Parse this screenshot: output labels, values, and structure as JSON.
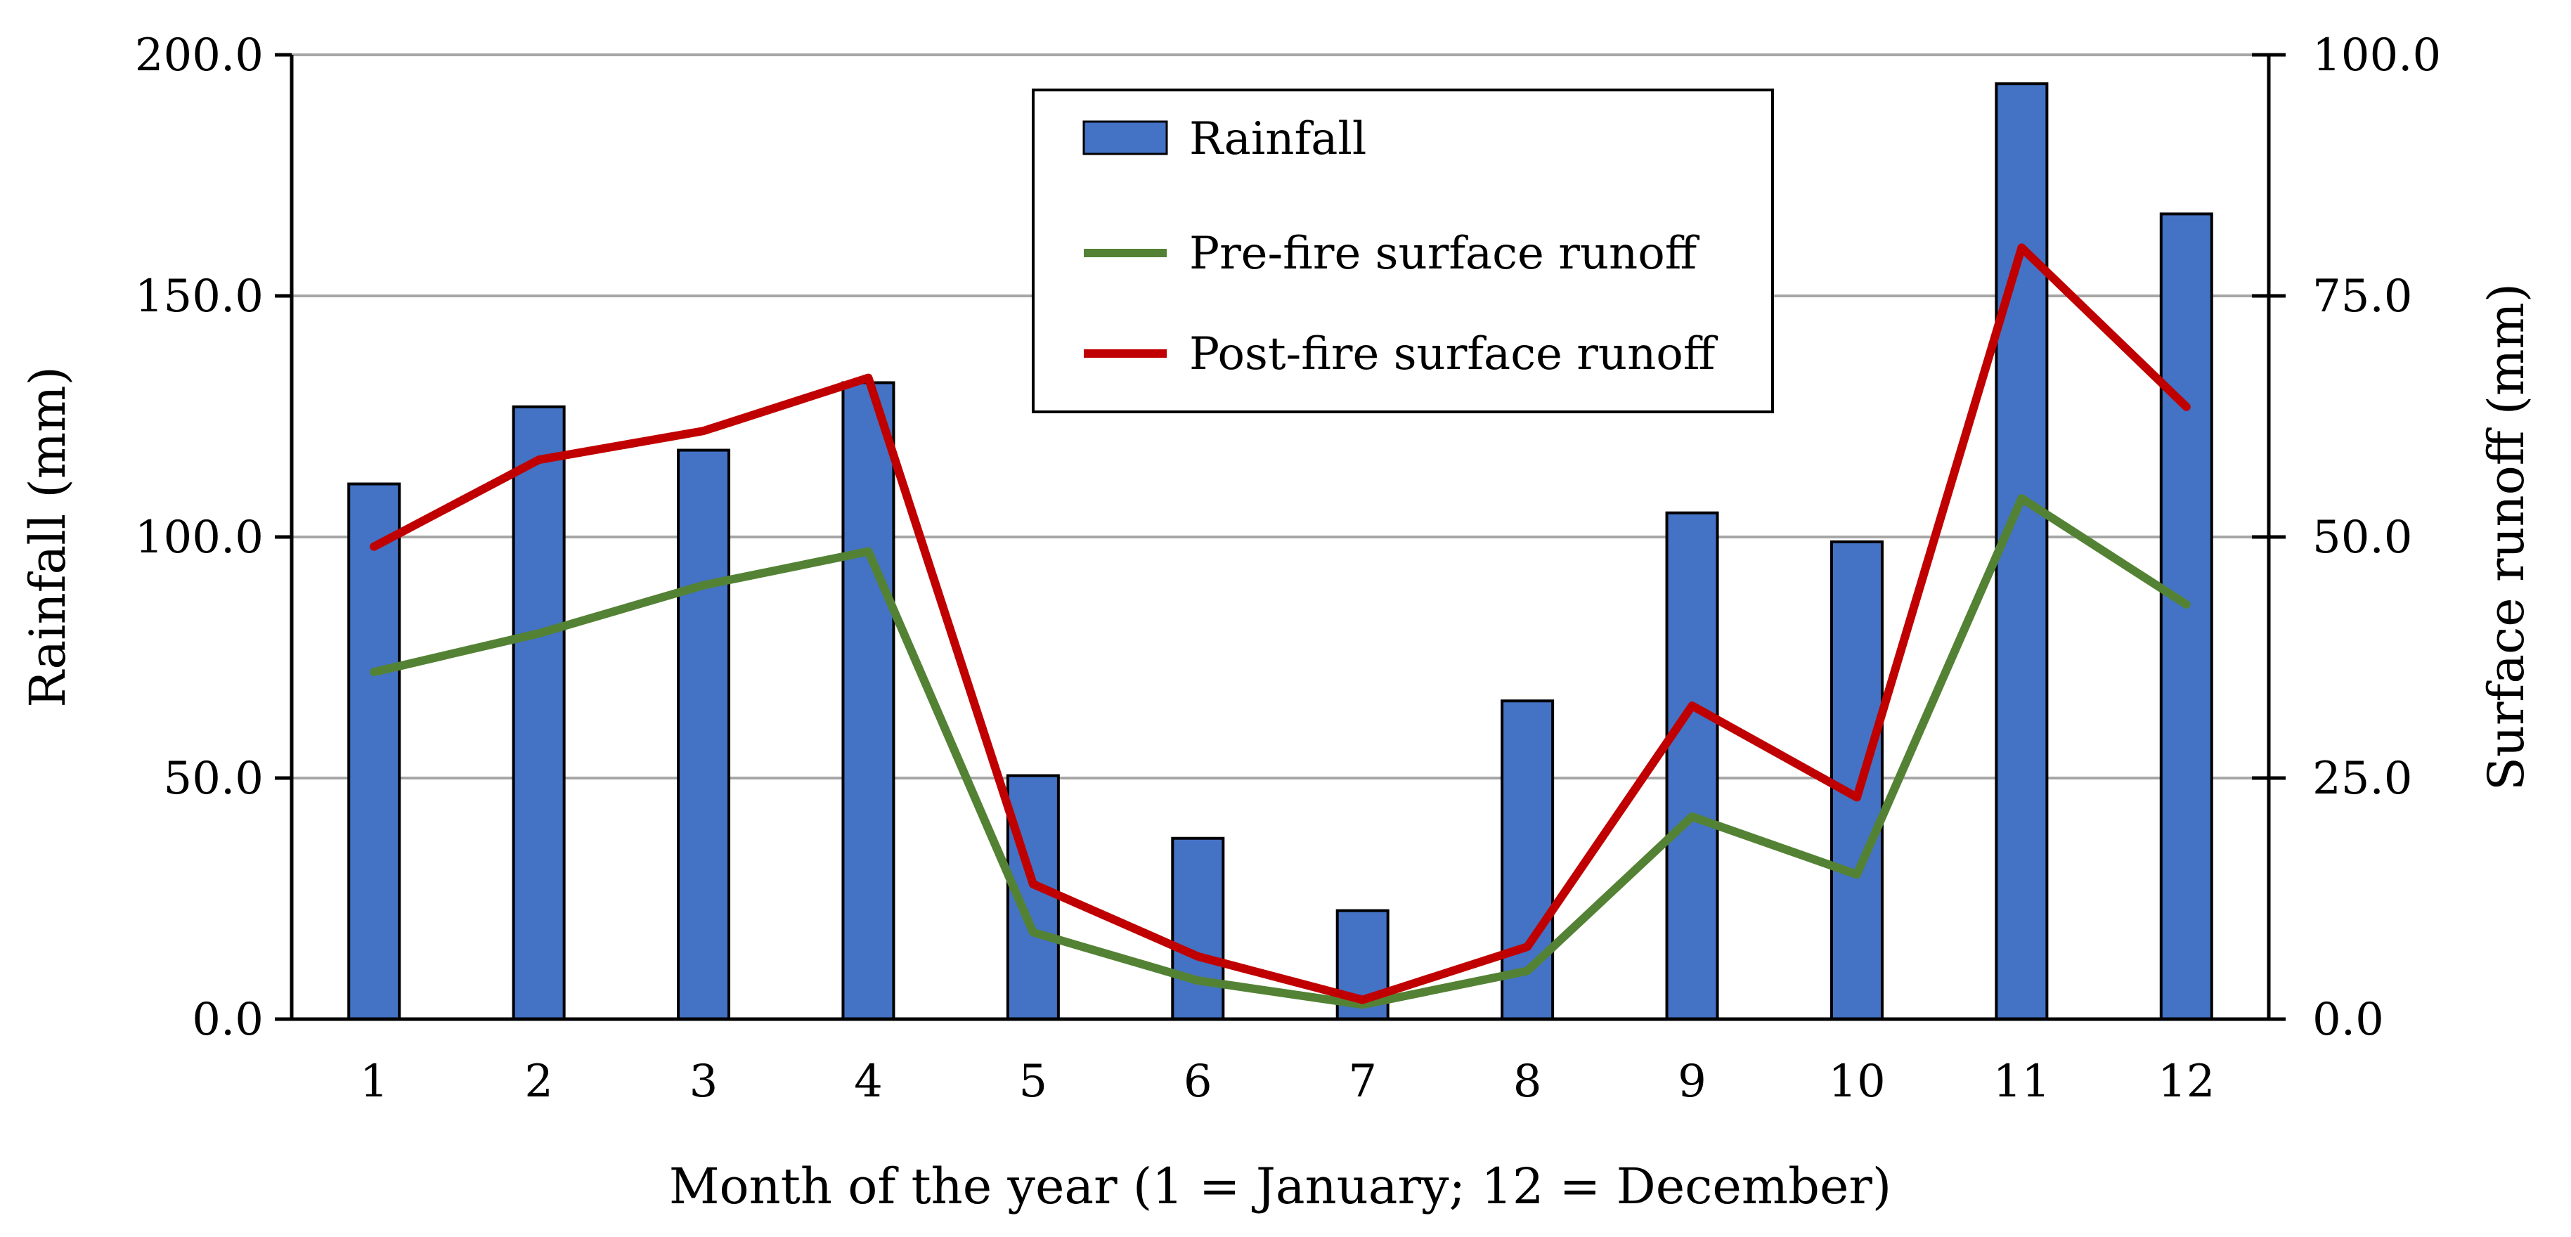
{
  "chart_data": {
    "type": "bar",
    "categories": [
      "1",
      "2",
      "3",
      "4",
      "5",
      "6",
      "7",
      "8",
      "9",
      "10",
      "11",
      "12"
    ],
    "series": [
      {
        "name": "Rainfall",
        "kind": "bar",
        "axis": "left",
        "color": "#4472c4",
        "values": [
          111,
          127,
          118,
          132,
          50.5,
          37.5,
          22.5,
          66,
          105,
          99,
          194,
          167
        ]
      },
      {
        "name": "Pre-fire surface runoff",
        "kind": "line",
        "axis": "right",
        "color": "#548235",
        "values": [
          36,
          40,
          45,
          48.5,
          9,
          4,
          1.5,
          5,
          21,
          15,
          54,
          43
        ]
      },
      {
        "name": "Post-fire surface runoff",
        "kind": "line",
        "axis": "right",
        "color": "#c00000",
        "values": [
          49,
          58,
          61,
          66.5,
          14,
          6.5,
          2,
          7.5,
          32.5,
          23,
          80,
          63.5
        ]
      }
    ],
    "xlabel": "Month of the year (1 = January; 12 = December)",
    "ylabel": "Rainfall (mm)",
    "y2label": "Surface runoff (mm)",
    "ylim": [
      0,
      200
    ],
    "y2lim": [
      0,
      100
    ],
    "yticks": [
      "0.0",
      "50.0",
      "100.0",
      "150.0",
      "200.0"
    ],
    "y2ticks": [
      "0.0",
      "25.0",
      "50.0",
      "75.0",
      "100.0"
    ],
    "grid": true,
    "legend_position": "top-center"
  }
}
